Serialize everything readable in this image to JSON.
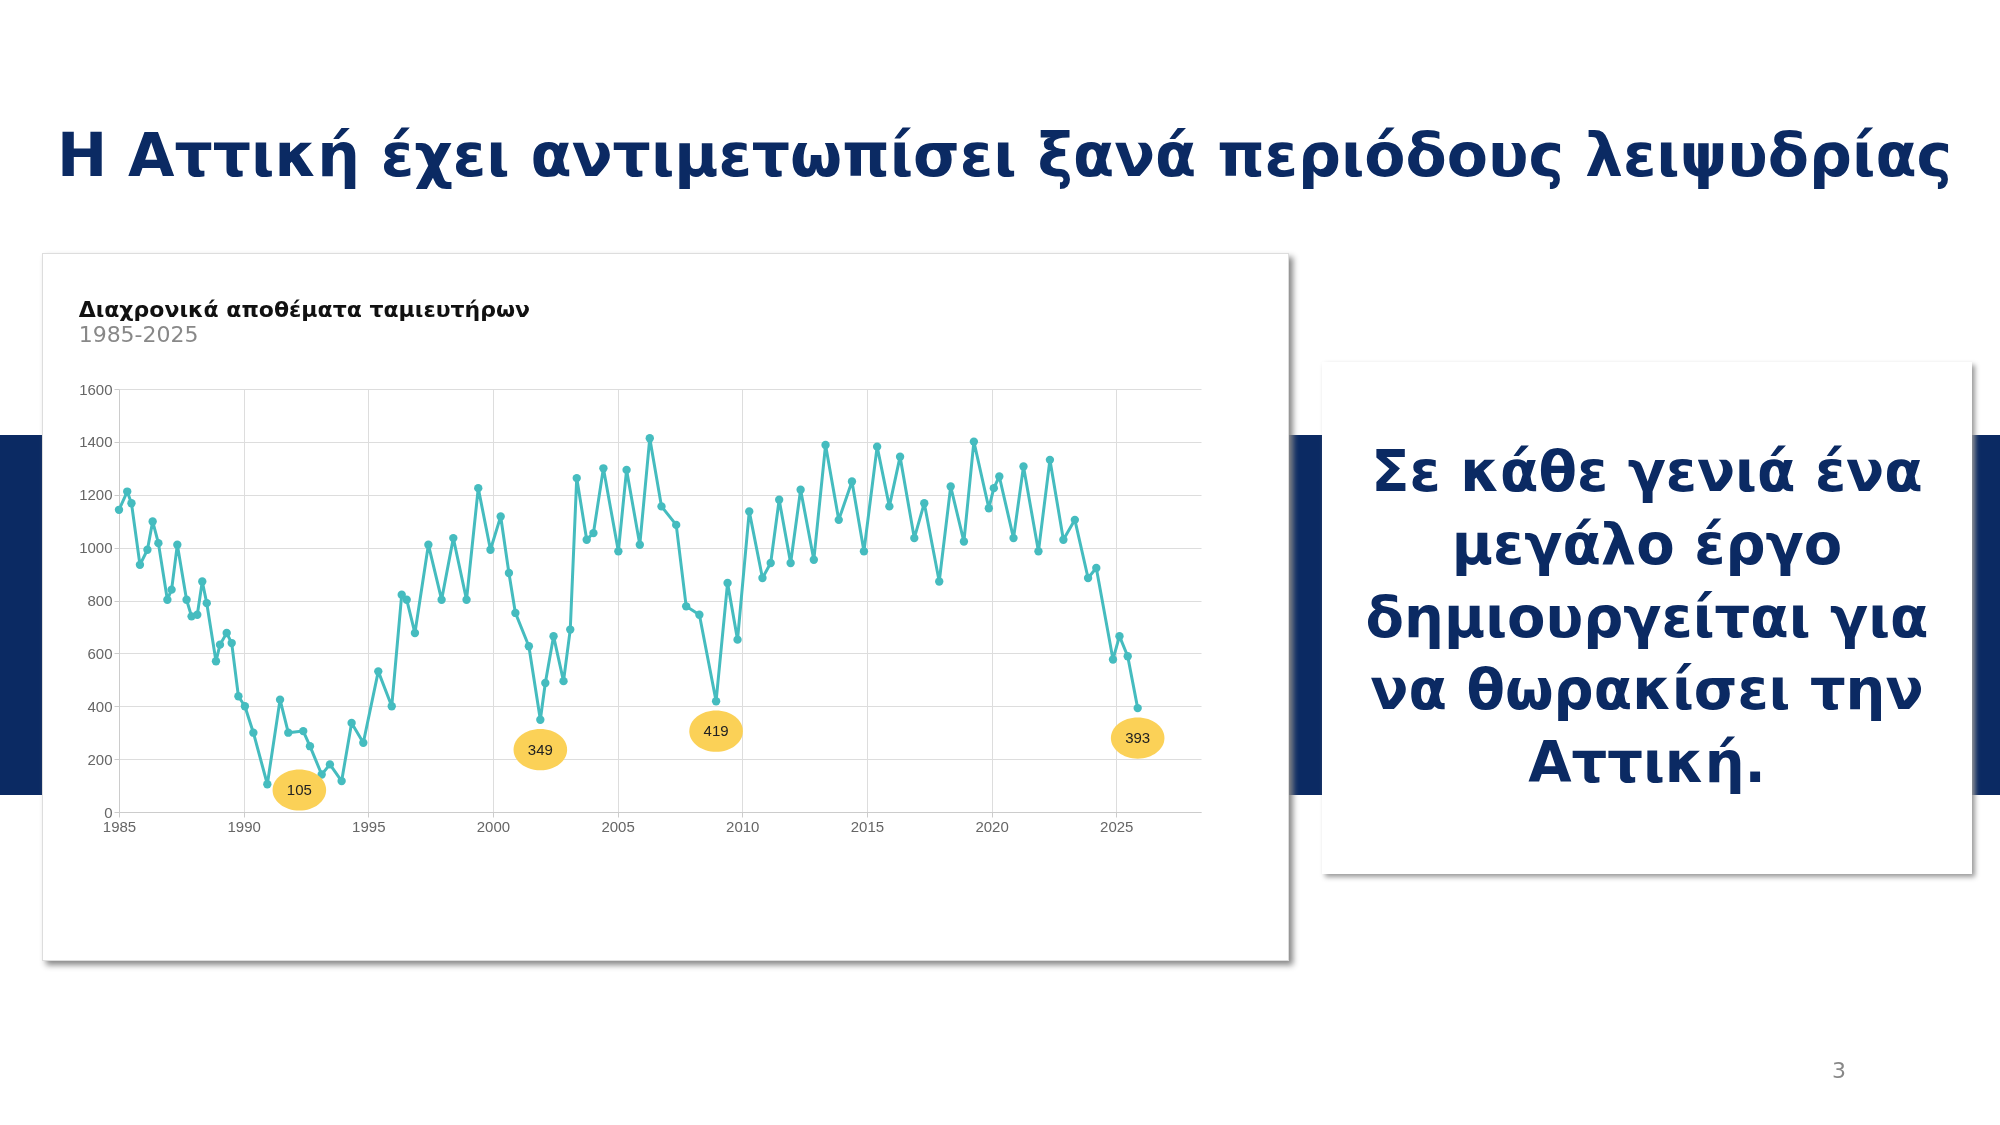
{
  "chart_data": {
    "type": "line",
    "title": "Διαχρονικά αποθέματα ταμιευτήρων",
    "subtitle": "1985-2025",
    "x": [
      1985.0,
      1985.33,
      1985.5,
      1985.84,
      1986.14,
      1986.35,
      1986.58,
      1986.94,
      1987.11,
      1987.34,
      1987.71,
      1987.91,
      1988.14,
      1988.34,
      1988.52,
      1988.89,
      1989.05,
      1989.32,
      1989.52,
      1989.79,
      1990.05,
      1990.39,
      1990.95,
      1991.46,
      1991.79,
      1992.39,
      1992.66,
      1993.13,
      1993.46,
      1993.93,
      1994.33,
      1994.8,
      1995.4,
      1995.94,
      1996.34,
      1996.54,
      1996.87,
      1997.41,
      1997.94,
      1998.41,
      1998.94,
      1999.41,
      1999.9,
      2000.31,
      2000.64,
      2000.9,
      2001.44,
      2001.9,
      2002.1,
      2002.43,
      2002.83,
      2003.1,
      2003.36,
      2003.76,
      2004.03,
      2004.43,
      2005.03,
      2005.36,
      2005.89,
      2006.29,
      2006.76,
      2007.35,
      2007.75,
      2008.28,
      2008.95,
      2009.41,
      2009.81,
      2010.28,
      2010.81,
      2011.14,
      2011.48,
      2011.94,
      2012.34,
      2012.87,
      2013.34,
      2013.87,
      2014.4,
      2014.88,
      2015.41,
      2015.9,
      2016.33,
      2016.9,
      2017.3,
      2017.9,
      2018.36,
      2018.89,
      2019.29,
      2019.89,
      2020.09,
      2020.31,
      2020.88,
      2021.28,
      2021.88,
      2022.34,
      2022.88,
      2023.34,
      2023.87,
      2024.2,
      2024.87,
      2025.13,
      2025.46,
      2025.86
    ],
    "series": [
      {
        "color": "#45bcbf",
        "values": [
          1143,
          1212,
          1168,
          935,
          992,
          1099,
          1017,
          803,
          841,
          1011,
          803,
          740,
          746,
          872,
          790,
          570,
          633,
          677,
          639,
          438,
          400,
          300,
          105,
          425,
          300,
          306,
          249,
          142,
          180,
          117,
          337,
          262,
          532,
          400,
          822,
          803,
          677,
          1011,
          803,
          1036,
          803,
          1225,
          992,
          1118,
          904,
          753,
          627,
          349,
          488,
          665,
          495,
          690,
          1263,
          1030,
          1055,
          1300,
          986,
          1294,
          1011,
          1414,
          1156,
          1086,
          778,
          746,
          419,
          866,
          652,
          1137,
          885,
          942,
          1181,
          942,
          1219,
          954,
          1388,
          1105,
          1250,
          986,
          1382,
          1156,
          1344,
          1036,
          1168,
          872,
          1231,
          1023,
          1401,
          1149,
          1225,
          1269,
          1036,
          1307,
          986,
          1332,
          1030,
          1105,
          885,
          923,
          577,
          665,
          589,
          393
        ]
      }
    ],
    "xlim": [
      1985,
      2028.4
    ],
    "xticks": [
      1985,
      1990,
      1995,
      2000,
      2005,
      2010,
      2015,
      2020,
      2025
    ],
    "ylim": [
      0,
      1600
    ],
    "yticks": [
      0,
      200,
      400,
      600,
      800,
      1000,
      1200,
      1400,
      1600
    ],
    "grid": true,
    "marker": "circle",
    "line_style": "solid",
    "annotations": [
      {
        "text": "105",
        "x": 1990.95,
        "y": 105
      },
      {
        "text": "349",
        "x": 2001.9,
        "y": 349
      },
      {
        "text": "419",
        "x": 2008.95,
        "y": 419
      },
      {
        "text": "393",
        "x": 2025.86,
        "y": 393
      },
      "Η Αττική έχει αντιμετωπίσει ξανά περιόδους λειψυδρίας",
      "Σε κάθε γενιά ένα μεγάλο έργο δημιουργείται για να θωρακίσει την Αττική.",
      "3"
    ]
  }
}
